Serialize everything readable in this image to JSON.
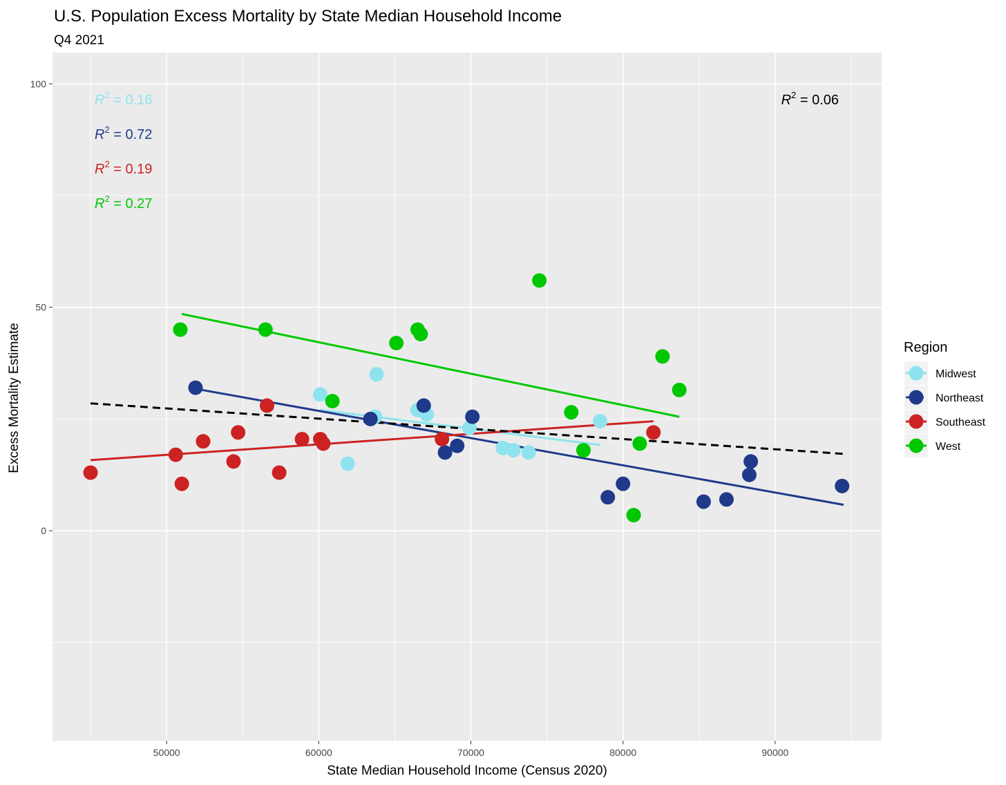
{
  "chart_data": {
    "type": "scatter",
    "title": "U.S. Population Excess Mortality by State Median Household Income",
    "subtitle": "Q4 2021",
    "xlabel": "State Median Household Income (Census 2020)",
    "ylabel": "Excess Mortality Estimate",
    "xlim": [
      42500,
      97000
    ],
    "ylim": [
      -47,
      107
    ],
    "x_ticks": [
      50000,
      60000,
      70000,
      80000,
      90000
    ],
    "y_ticks": [
      0,
      50,
      100
    ],
    "grid": true,
    "legend_title": "Region",
    "legend_position": "right",
    "overall_trend": {
      "x": [
        45000,
        94500
      ],
      "y": [
        28.5,
        17.2
      ],
      "style": "dashed",
      "color": "#000000"
    },
    "overall_r2": {
      "label": "R",
      "exponent": "2",
      "value": " = 0.06",
      "color": "#000000"
    },
    "series": [
      {
        "name": "Midwest",
        "color": "#8fe3ee",
        "trend": {
          "x": [
            60100,
            78500
          ],
          "y": [
            27,
            19.2
          ]
        },
        "r2": {
          "label": "R",
          "exponent": "2",
          "value": " = 0.16"
        },
        "points": [
          [
            60100,
            30.5
          ],
          [
            61900,
            15
          ],
          [
            63700,
            25.5
          ],
          [
            63800,
            35
          ],
          [
            66500,
            27
          ],
          [
            67100,
            26
          ],
          [
            69900,
            23
          ],
          [
            72100,
            18.5
          ],
          [
            72800,
            18
          ],
          [
            73800,
            17.5
          ],
          [
            78500,
            24.5
          ]
        ]
      },
      {
        "name": "Northeast",
        "color": "#1f3a8a",
        "trend": {
          "x": [
            51500,
            94500
          ],
          "y": [
            32,
            5.8
          ]
        },
        "r2": {
          "label": "R",
          "exponent": "2",
          "value": " = 0.72"
        },
        "points": [
          [
            51900,
            32
          ],
          [
            63400,
            25
          ],
          [
            66900,
            28
          ],
          [
            68300,
            17.5
          ],
          [
            69100,
            19
          ],
          [
            70100,
            25.5
          ],
          [
            79000,
            7.5
          ],
          [
            80000,
            10.5
          ],
          [
            85300,
            6.5
          ],
          [
            86800,
            7
          ],
          [
            88300,
            12.5
          ],
          [
            88400,
            15.5
          ],
          [
            94400,
            10
          ]
        ]
      },
      {
        "name": "Southeast",
        "color": "#cc2222",
        "trend": {
          "x": [
            45000,
            82000
          ],
          "y": [
            15.8,
            24.5
          ]
        },
        "r2": {
          "label": "R",
          "exponent": "2",
          "value": " = 0.19"
        },
        "points": [
          [
            45000,
            13
          ],
          [
            50600,
            17
          ],
          [
            51000,
            10.5
          ],
          [
            52400,
            20
          ],
          [
            54400,
            15.5
          ],
          [
            54700,
            22
          ],
          [
            56600,
            28
          ],
          [
            57400,
            13
          ],
          [
            58900,
            20.5
          ],
          [
            60100,
            20.5
          ],
          [
            60300,
            19.5
          ],
          [
            68100,
            20.5
          ],
          [
            82000,
            22
          ]
        ]
      },
      {
        "name": "West",
        "color": "#00c800",
        "trend": {
          "x": [
            51000,
            83700
          ],
          "y": [
            48.5,
            25.5
          ]
        },
        "r2": {
          "label": "R",
          "exponent": "2",
          "value": " = 0.27"
        },
        "points": [
          [
            50900,
            45
          ],
          [
            56500,
            45
          ],
          [
            60900,
            29
          ],
          [
            65100,
            42
          ],
          [
            66500,
            45
          ],
          [
            66700,
            44
          ],
          [
            74500,
            56
          ],
          [
            76600,
            26.5
          ],
          [
            77400,
            18
          ],
          [
            80700,
            3.5
          ],
          [
            81100,
            19.5
          ],
          [
            82600,
            39
          ],
          [
            83700,
            31.5
          ]
        ]
      }
    ]
  }
}
